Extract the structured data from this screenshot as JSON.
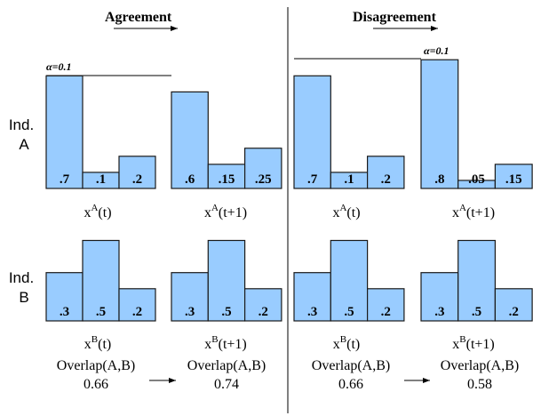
{
  "headers": {
    "agreement": "Agreement",
    "disagreement": "Disagreement"
  },
  "row_labels": {
    "a_line1": "Ind.",
    "a_line2": "A",
    "b_line1": "Ind.",
    "b_line2": "B"
  },
  "alpha_label": "α=0.1",
  "panels": {
    "agreement_a_t": {
      "values": [
        0.7,
        0.1,
        0.2
      ],
      "labels": [
        ".7",
        ".1",
        ".2"
      ],
      "caption": "x",
      "sup": "A",
      "arg": "(t)"
    },
    "agreement_a_t1": {
      "values": [
        0.6,
        0.15,
        0.25
      ],
      "labels": [
        ".6",
        ".15",
        ".25"
      ],
      "caption": "x",
      "sup": "A",
      "arg": "(t+1)"
    },
    "disagreement_a_t": {
      "values": [
        0.7,
        0.1,
        0.2
      ],
      "labels": [
        ".7",
        ".1",
        ".2"
      ],
      "caption": "x",
      "sup": "A",
      "arg": "(t)"
    },
    "disagreement_a_t1": {
      "values": [
        0.8,
        0.05,
        0.15
      ],
      "labels": [
        ".8",
        ".05",
        ".15"
      ],
      "caption": "x",
      "sup": "A",
      "arg": "(t+1)"
    },
    "agreement_b_t": {
      "values": [
        0.3,
        0.5,
        0.2
      ],
      "labels": [
        ".3",
        ".5",
        ".2"
      ],
      "caption": "x",
      "sup": "B",
      "arg": "(t)"
    },
    "agreement_b_t1": {
      "values": [
        0.3,
        0.5,
        0.2
      ],
      "labels": [
        ".3",
        ".5",
        ".2"
      ],
      "caption": "x",
      "sup": "B",
      "arg": "(t+1)"
    },
    "disagreement_b_t": {
      "values": [
        0.3,
        0.5,
        0.2
      ],
      "labels": [
        ".3",
        ".5",
        ".2"
      ],
      "caption": "x",
      "sup": "B",
      "arg": "(t)"
    },
    "disagreement_b_t1": {
      "values": [
        0.3,
        0.5,
        0.2
      ],
      "labels": [
        ".3",
        ".5",
        ".2"
      ],
      "caption": "x",
      "sup": "B",
      "arg": "(t+1)"
    }
  },
  "overlaps": {
    "label": "Overlap(A,B)",
    "agreement_t": "0.66",
    "agreement_t1": "0.74",
    "disagreement_t": "0.66",
    "disagreement_t1": "0.58"
  }
}
